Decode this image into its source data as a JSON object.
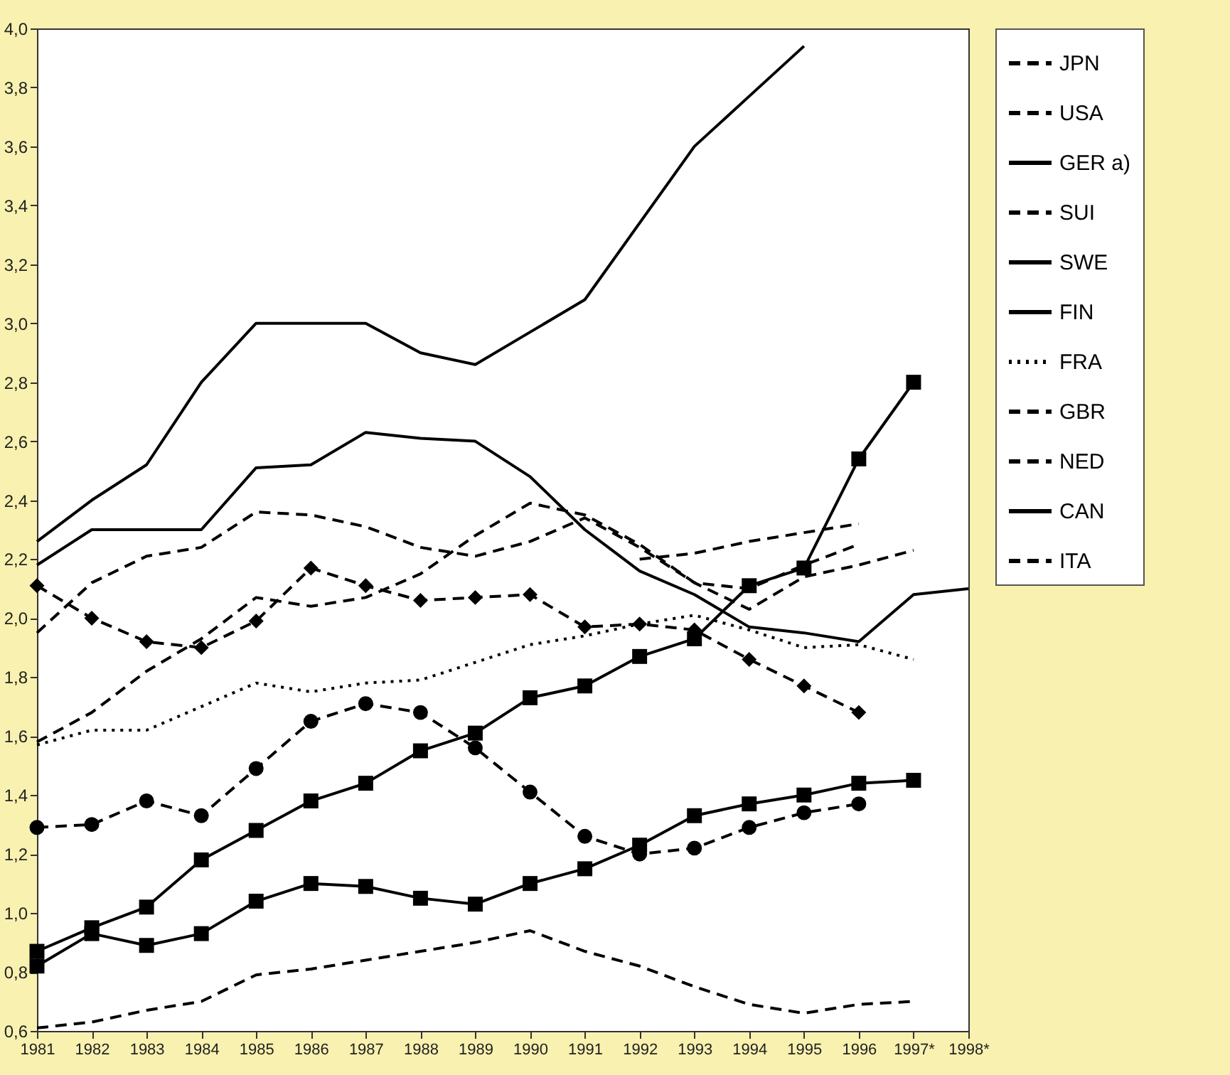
{
  "chart_data": {
    "type": "line",
    "categories": [
      "1981",
      "1982",
      "1983",
      "1984",
      "1985",
      "1986",
      "1987",
      "1988",
      "1989",
      "1990",
      "1991",
      "1992",
      "1993",
      "1994",
      "1995",
      "1996",
      "1997*",
      "1998*"
    ],
    "series": [
      {
        "name": "JPN",
        "color": "#000000",
        "line_style": "dashed",
        "marker": "none",
        "values": [
          1.58,
          1.68,
          1.82,
          1.93,
          2.07,
          2.04,
          2.07,
          2.15,
          2.28,
          2.39,
          2.35,
          2.25,
          2.12,
          2.1,
          2.18,
          2.25,
          null,
          null
        ]
      },
      {
        "name": "USA",
        "color": "#000000",
        "line_style": "dashed",
        "marker": "none",
        "values": [
          1.95,
          2.12,
          2.21,
          2.24,
          2.36,
          2.35,
          2.31,
          2.24,
          2.21,
          2.26,
          2.34,
          2.24,
          2.12,
          2.03,
          2.14,
          2.18,
          2.23,
          null
        ]
      },
      {
        "name": "GER a)",
        "color": "#000000",
        "line_style": "solid",
        "marker": "none",
        "values": [
          2.18,
          2.3,
          2.3,
          2.3,
          2.51,
          2.52,
          2.63,
          2.61,
          2.6,
          2.48,
          2.3,
          2.16,
          2.08,
          1.97,
          1.95,
          1.92,
          2.08,
          2.1
        ]
      },
      {
        "name": "SUI",
        "color": "#000000",
        "line_style": "dashed",
        "marker": "none",
        "values": [
          null,
          null,
          null,
          null,
          null,
          null,
          null,
          null,
          null,
          null,
          null,
          2.2,
          2.22,
          2.26,
          2.29,
          2.32,
          null,
          null
        ]
      },
      {
        "name": "SWE",
        "color": "#000000",
        "line_style": "solid",
        "marker": "none",
        "values": [
          2.26,
          2.4,
          2.52,
          2.8,
          3.0,
          3.0,
          3.0,
          2.9,
          2.86,
          2.97,
          3.08,
          3.34,
          3.6,
          3.77,
          3.94,
          null,
          null,
          null
        ]
      },
      {
        "name": "FIN",
        "color": "#000000",
        "line_style": "solid",
        "marker": "square",
        "values": [
          0.87,
          0.95,
          1.02,
          1.18,
          1.28,
          1.38,
          1.44,
          1.55,
          1.61,
          1.73,
          1.77,
          1.87,
          1.93,
          2.11,
          2.17,
          2.54,
          2.8,
          null
        ]
      },
      {
        "name": "FRA",
        "color": "#000000",
        "line_style": "dotted",
        "marker": "none",
        "values": [
          1.57,
          1.62,
          1.62,
          1.7,
          1.78,
          1.75,
          1.78,
          1.79,
          1.85,
          1.91,
          1.94,
          1.98,
          2.01,
          1.96,
          1.9,
          1.91,
          1.86,
          null
        ]
      },
      {
        "name": "GBR",
        "color": "#000000",
        "line_style": "dashed",
        "marker": "diamond",
        "values": [
          2.11,
          2.0,
          1.92,
          1.9,
          1.99,
          2.17,
          2.11,
          2.06,
          2.07,
          2.08,
          1.97,
          1.98,
          1.96,
          1.86,
          1.77,
          1.68,
          null,
          null
        ]
      },
      {
        "name": "NED",
        "color": "#000000",
        "line_style": "dashed",
        "marker": "circle",
        "values": [
          1.29,
          1.3,
          1.38,
          1.33,
          1.49,
          1.65,
          1.71,
          1.68,
          1.56,
          1.41,
          1.26,
          1.2,
          1.22,
          1.29,
          1.34,
          1.37,
          null,
          null
        ]
      },
      {
        "name": "CAN",
        "color": "#000000",
        "line_style": "solid",
        "marker": "square",
        "values": [
          0.82,
          0.93,
          0.89,
          0.93,
          1.04,
          1.1,
          1.09,
          1.05,
          1.03,
          1.1,
          1.15,
          1.23,
          1.33,
          1.37,
          1.4,
          1.44,
          1.45,
          null
        ]
      },
      {
        "name": "ITA",
        "color": "#000000",
        "line_style": "dashed",
        "marker": "none",
        "values": [
          0.61,
          0.63,
          0.67,
          0.7,
          0.79,
          0.81,
          0.84,
          0.87,
          0.9,
          0.94,
          0.87,
          0.82,
          0.75,
          0.69,
          0.66,
          0.69,
          0.7,
          null
        ]
      }
    ],
    "ylim": [
      0.6,
      4.0
    ],
    "yticks": [
      {
        "value": 0.6,
        "label": "0,6"
      },
      {
        "value": 0.8,
        "label": "0,8"
      },
      {
        "value": 1.0,
        "label": "1,0"
      },
      {
        "value": 1.2,
        "label": "1,2"
      },
      {
        "value": 1.4,
        "label": "1,4"
      },
      {
        "value": 1.6,
        "label": "1,6"
      },
      {
        "value": 1.8,
        "label": "1,8"
      },
      {
        "value": 2.0,
        "label": "2,0"
      },
      {
        "value": 2.2,
        "label": "2,2"
      },
      {
        "value": 2.4,
        "label": "2,4"
      },
      {
        "value": 2.6,
        "label": "2,6"
      },
      {
        "value": 2.8,
        "label": "2,8"
      },
      {
        "value": 3.0,
        "label": "3,0"
      },
      {
        "value": 3.2,
        "label": "3,2"
      },
      {
        "value": 3.4,
        "label": "3,4"
      },
      {
        "value": 3.6,
        "label": "3,6"
      },
      {
        "value": 3.8,
        "label": "3,8"
      },
      {
        "value": 4.0,
        "label": "4,0"
      }
    ],
    "grid": false,
    "legend": "right"
  }
}
